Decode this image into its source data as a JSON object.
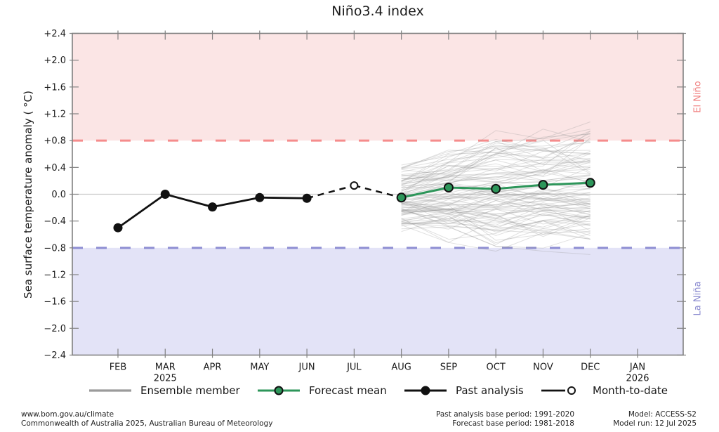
{
  "chart_data": {
    "type": "line",
    "title": "Niño3.4 index",
    "ylabel": "Sea surface temperature anomaly ( °C)",
    "xlabel": "",
    "ylim": [
      -2.4,
      2.4
    ],
    "ytick_labels": [
      "+2.4",
      "+2.0",
      "+1.6",
      "+1.2",
      "+0.8",
      "+0.4",
      "0.0",
      "−0.4",
      "−0.8",
      "−1.2",
      "−1.6",
      "−2.0",
      "−2.4"
    ],
    "x_categories": [
      "FEB",
      "MAR",
      "APR",
      "MAY",
      "JUN",
      "JUL",
      "AUG",
      "SEP",
      "OCT",
      "NOV",
      "DEC",
      "JAN"
    ],
    "x_year_labels": [
      {
        "month": "MAR",
        "year": "2025"
      },
      {
        "month": "JAN",
        "year": "2026"
      }
    ],
    "grid": "zero-line-only",
    "zero_line": {
      "value": 0.0,
      "color": "#c9c9c9"
    },
    "frame_color": "#808080",
    "bands": [
      {
        "name": "El Niño",
        "from": 0.8,
        "to": 2.4,
        "fill": "#fbe5e5",
        "label_color": "#f08080",
        "threshold": {
          "value": 0.8,
          "color": "#f58c8c",
          "style": "dashed"
        }
      },
      {
        "name": "La Niña",
        "from": -2.4,
        "to": -0.8,
        "fill": "#e3e3f7",
        "label_color": "#8989cf",
        "threshold": {
          "value": -0.8,
          "color": "#8d8dd2",
          "style": "dashed"
        }
      }
    ],
    "series": [
      {
        "name": "Past analysis",
        "x": [
          "FEB",
          "MAR",
          "APR",
          "MAY",
          "JUN"
        ],
        "values": [
          -0.5,
          0.0,
          -0.19,
          -0.05,
          -0.06
        ],
        "color": "#111111",
        "line_width": 2.8,
        "marker": {
          "shape": "circle",
          "fill": "#111111",
          "edge": "#111111",
          "radius": 5.5
        }
      },
      {
        "name": "Month-to-date",
        "x": [
          "JUL"
        ],
        "values": [
          0.13
        ],
        "color": "#111111",
        "line_width": 0,
        "marker": {
          "shape": "circle",
          "fill": "#ffffff",
          "edge": "#111111",
          "radius": 5
        }
      },
      {
        "name": "Forecast mean",
        "x": [
          "AUG",
          "SEP",
          "OCT",
          "NOV",
          "DEC"
        ],
        "values": [
          -0.05,
          0.1,
          0.08,
          0.14,
          0.17
        ],
        "color": "#2d965a",
        "line_width": 3,
        "marker": {
          "shape": "circle",
          "fill": "#2d965a",
          "edge": "#111111",
          "radius": 6
        }
      }
    ],
    "connectors": {
      "color": "#111111",
      "dash": "9 7",
      "width": 2.5,
      "segments": [
        {
          "from": {
            "x": "JUN",
            "v": -0.06
          },
          "to": {
            "x": "JUL",
            "v": 0.13
          }
        },
        {
          "from": {
            "x": "JUL",
            "v": 0.13
          },
          "to": {
            "x": "AUG",
            "v": -0.05
          }
        }
      ]
    },
    "ensemble": {
      "name": "Ensemble member",
      "count": 99,
      "seed": 11,
      "color": "#999999",
      "opacity": 0.3,
      "width": 1,
      "x": [
        "AUG",
        "SEP",
        "OCT",
        "NOV",
        "DEC"
      ],
      "min": [
        -0.6,
        -0.72,
        -0.85,
        -0.85,
        -0.9
      ],
      "max": [
        0.5,
        0.72,
        1.0,
        1.05,
        1.1
      ]
    },
    "legend": {
      "position": "bottom",
      "items": [
        {
          "label": "Ensemble member",
          "type": "line",
          "color": "#9b9b9b"
        },
        {
          "label": "Forecast mean",
          "type": "line-dot",
          "color": "#2d965a",
          "marker_fill": "#2d965a",
          "marker_edge": "#111111"
        },
        {
          "label": "Past analysis",
          "type": "line-dot",
          "color": "#111111",
          "marker_fill": "#111111",
          "marker_edge": "#111111"
        },
        {
          "label": "Month-to-date",
          "type": "line-open-dot",
          "color": "#111111",
          "marker_fill": "#ffffff",
          "marker_edge": "#111111"
        }
      ]
    }
  },
  "footer": {
    "left_lines": [
      "www.bom.gov.au/climate",
      "Commonwealth of Australia 2025, Australian Bureau of Meteorology"
    ],
    "center_lines": [
      "Past analysis base period: 1991-2020",
      "Forecast base period: 1981-2018"
    ],
    "right_lines": [
      "Model: ACCESS-S2",
      "Model run: 12 Jul 2025"
    ]
  }
}
